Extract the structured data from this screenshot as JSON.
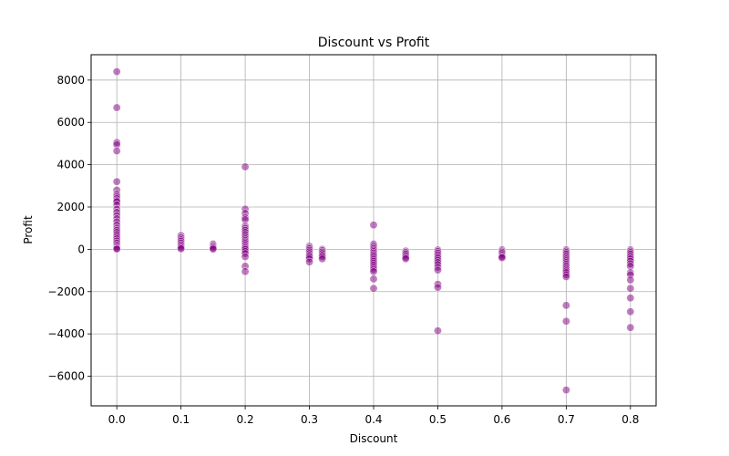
{
  "chart_data": {
    "type": "scatter",
    "title": "Discount vs Profit",
    "xlabel": "Discount",
    "ylabel": "Profit",
    "xlim": [
      -0.04,
      0.84
    ],
    "ylim": [
      -7400,
      9200
    ],
    "xticks": [
      0.0,
      0.1,
      0.2,
      0.3,
      0.4,
      0.5,
      0.6,
      0.7,
      0.8
    ],
    "xtick_labels": [
      "0.0",
      "0.1",
      "0.2",
      "0.3",
      "0.4",
      "0.5",
      "0.6",
      "0.7",
      "0.8"
    ],
    "yticks": [
      -6000,
      -4000,
      -2000,
      0,
      2000,
      4000,
      6000,
      8000
    ],
    "ytick_labels": [
      "−6000",
      "−4000",
      "−2000",
      "0",
      "2000",
      "4000",
      "6000",
      "8000"
    ],
    "grid": true,
    "marker_color": "#800080",
    "marker_edge_color": "#ffffff",
    "marker_alpha": 0.5,
    "points": [
      [
        0.0,
        8400
      ],
      [
        0.0,
        6700
      ],
      [
        0.0,
        5050
      ],
      [
        0.0,
        4950
      ],
      [
        0.0,
        4650
      ],
      [
        0.0,
        3200
      ],
      [
        0.0,
        2800
      ],
      [
        0.0,
        2600
      ],
      [
        0.0,
        2500
      ],
      [
        0.0,
        2400
      ],
      [
        0.0,
        2300
      ],
      [
        0.0,
        2250
      ],
      [
        0.0,
        2100
      ],
      [
        0.0,
        1900
      ],
      [
        0.0,
        1750
      ],
      [
        0.0,
        1600
      ],
      [
        0.0,
        1450
      ],
      [
        0.0,
        1300
      ],
      [
        0.0,
        1150
      ],
      [
        0.0,
        1000
      ],
      [
        0.0,
        900
      ],
      [
        0.0,
        800
      ],
      [
        0.0,
        700
      ],
      [
        0.0,
        600
      ],
      [
        0.0,
        500
      ],
      [
        0.0,
        400
      ],
      [
        0.0,
        300
      ],
      [
        0.0,
        200
      ],
      [
        0.0,
        120
      ],
      [
        0.0,
        50
      ],
      [
        0.0,
        10
      ],
      [
        0.1,
        650
      ],
      [
        0.1,
        550
      ],
      [
        0.1,
        450
      ],
      [
        0.1,
        380
      ],
      [
        0.1,
        300
      ],
      [
        0.1,
        220
      ],
      [
        0.1,
        150
      ],
      [
        0.1,
        80
      ],
      [
        0.1,
        20
      ],
      [
        0.15,
        250
      ],
      [
        0.15,
        180
      ],
      [
        0.15,
        120
      ],
      [
        0.15,
        60
      ],
      [
        0.15,
        10
      ],
      [
        0.2,
        3900
      ],
      [
        0.2,
        1900
      ],
      [
        0.2,
        1700
      ],
      [
        0.2,
        1500
      ],
      [
        0.2,
        1400
      ],
      [
        0.2,
        1100
      ],
      [
        0.2,
        1000
      ],
      [
        0.2,
        900
      ],
      [
        0.2,
        800
      ],
      [
        0.2,
        700
      ],
      [
        0.2,
        600
      ],
      [
        0.2,
        500
      ],
      [
        0.2,
        420
      ],
      [
        0.2,
        350
      ],
      [
        0.2,
        280
      ],
      [
        0.2,
        200
      ],
      [
        0.2,
        130
      ],
      [
        0.2,
        60
      ],
      [
        0.2,
        0
      ],
      [
        0.2,
        -100
      ],
      [
        0.2,
        -200
      ],
      [
        0.2,
        -350
      ],
      [
        0.2,
        -800
      ],
      [
        0.2,
        -1050
      ],
      [
        0.3,
        150
      ],
      [
        0.3,
        80
      ],
      [
        0.3,
        20
      ],
      [
        0.3,
        -50
      ],
      [
        0.3,
        -120
      ],
      [
        0.3,
        -200
      ],
      [
        0.3,
        -280
      ],
      [
        0.3,
        -350
      ],
      [
        0.3,
        -450
      ],
      [
        0.3,
        -600
      ],
      [
        0.32,
        0
      ],
      [
        0.32,
        -60
      ],
      [
        0.32,
        -130
      ],
      [
        0.32,
        -200
      ],
      [
        0.32,
        -280
      ],
      [
        0.32,
        -350
      ],
      [
        0.32,
        -450
      ],
      [
        0.4,
        1150
      ],
      [
        0.4,
        250
      ],
      [
        0.4,
        180
      ],
      [
        0.4,
        100
      ],
      [
        0.4,
        30
      ],
      [
        0.4,
        -40
      ],
      [
        0.4,
        -110
      ],
      [
        0.4,
        -180
      ],
      [
        0.4,
        -250
      ],
      [
        0.4,
        -320
      ],
      [
        0.4,
        -400
      ],
      [
        0.4,
        -480
      ],
      [
        0.4,
        -560
      ],
      [
        0.4,
        -650
      ],
      [
        0.4,
        -750
      ],
      [
        0.4,
        -850
      ],
      [
        0.4,
        -950
      ],
      [
        0.4,
        -1050
      ],
      [
        0.4,
        -1400
      ],
      [
        0.4,
        -1850
      ],
      [
        0.45,
        -80
      ],
      [
        0.45,
        -150
      ],
      [
        0.45,
        -220
      ],
      [
        0.45,
        -300
      ],
      [
        0.45,
        -380
      ],
      [
        0.45,
        -450
      ],
      [
        0.5,
        -30
      ],
      [
        0.5,
        -100
      ],
      [
        0.5,
        -180
      ],
      [
        0.5,
        -260
      ],
      [
        0.5,
        -340
      ],
      [
        0.5,
        -420
      ],
      [
        0.5,
        -520
      ],
      [
        0.5,
        -620
      ],
      [
        0.5,
        -720
      ],
      [
        0.5,
        -850
      ],
      [
        0.5,
        -980
      ],
      [
        0.5,
        -1650
      ],
      [
        0.5,
        -1800
      ],
      [
        0.5,
        -3850
      ],
      [
        0.6,
        -20
      ],
      [
        0.6,
        -80
      ],
      [
        0.6,
        -140
      ],
      [
        0.6,
        -200
      ],
      [
        0.6,
        -280
      ],
      [
        0.6,
        -350
      ],
      [
        0.6,
        -400
      ],
      [
        0.7,
        -20
      ],
      [
        0.7,
        -80
      ],
      [
        0.7,
        -150
      ],
      [
        0.7,
        -220
      ],
      [
        0.7,
        -300
      ],
      [
        0.7,
        -380
      ],
      [
        0.7,
        -460
      ],
      [
        0.7,
        -540
      ],
      [
        0.7,
        -620
      ],
      [
        0.7,
        -700
      ],
      [
        0.7,
        -780
      ],
      [
        0.7,
        -860
      ],
      [
        0.7,
        -940
      ],
      [
        0.7,
        -1020
      ],
      [
        0.7,
        -1100
      ],
      [
        0.7,
        -1200
      ],
      [
        0.7,
        -1300
      ],
      [
        0.7,
        -2650
      ],
      [
        0.7,
        -3400
      ],
      [
        0.7,
        -6650
      ],
      [
        0.8,
        -20
      ],
      [
        0.8,
        -80
      ],
      [
        0.8,
        -150
      ],
      [
        0.8,
        -220
      ],
      [
        0.8,
        -300
      ],
      [
        0.8,
        -380
      ],
      [
        0.8,
        -460
      ],
      [
        0.8,
        -560
      ],
      [
        0.8,
        -680
      ],
      [
        0.8,
        -800
      ],
      [
        0.8,
        -1100
      ],
      [
        0.8,
        -1200
      ],
      [
        0.8,
        -1450
      ],
      [
        0.8,
        -1850
      ],
      [
        0.8,
        -2300
      ],
      [
        0.8,
        -2950
      ],
      [
        0.8,
        -3700
      ]
    ]
  }
}
